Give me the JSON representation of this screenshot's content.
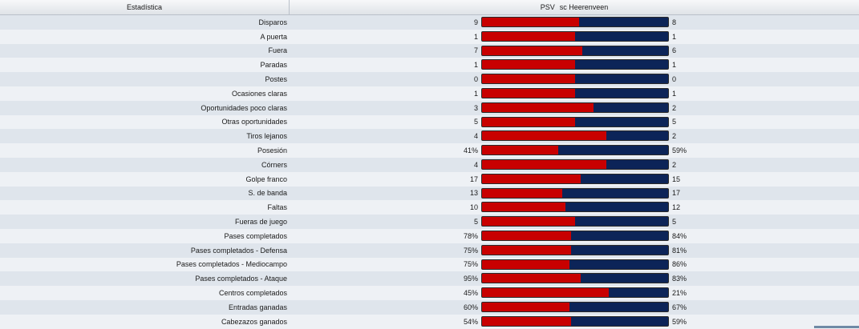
{
  "header": {
    "stat_col": "Estadística",
    "home_team": "PSV",
    "away_team": "sc Heerenveen"
  },
  "rows": [
    {
      "label": "Disparos",
      "home": "9",
      "away": "8",
      "home_share": 0.52
    },
    {
      "label": "A puerta",
      "home": "1",
      "away": "1",
      "home_share": 0.5
    },
    {
      "label": "Fuera",
      "home": "7",
      "away": "6",
      "home_share": 0.54
    },
    {
      "label": "Paradas",
      "home": "1",
      "away": "1",
      "home_share": 0.5
    },
    {
      "label": "Postes",
      "home": "0",
      "away": "0",
      "home_share": 0.5
    },
    {
      "label": "Ocasiones claras",
      "home": "1",
      "away": "1",
      "home_share": 0.5
    },
    {
      "label": "Oportunidades poco claras",
      "home": "3",
      "away": "2",
      "home_share": 0.6
    },
    {
      "label": "Otras oportunidades",
      "home": "5",
      "away": "5",
      "home_share": 0.5
    },
    {
      "label": "Tiros lejanos",
      "home": "4",
      "away": "2",
      "home_share": 0.67
    },
    {
      "label": "Posesión",
      "home": "41%",
      "away": "59%",
      "home_share": 0.41
    },
    {
      "label": "Córners",
      "home": "4",
      "away": "2",
      "home_share": 0.67
    },
    {
      "label": "Golpe franco",
      "home": "17",
      "away": "15",
      "home_share": 0.53
    },
    {
      "label": "S. de banda",
      "home": "13",
      "away": "17",
      "home_share": 0.43
    },
    {
      "label": "Faltas",
      "home": "10",
      "away": "12",
      "home_share": 0.45
    },
    {
      "label": "Fueras de juego",
      "home": "5",
      "away": "5",
      "home_share": 0.5
    },
    {
      "label": "Pases completados",
      "home": "78%",
      "away": "84%",
      "home_share": 0.48
    },
    {
      "label": "Pases completados - Defensa",
      "home": "75%",
      "away": "81%",
      "home_share": 0.48
    },
    {
      "label": "Pases completados - Mediocampo",
      "home": "75%",
      "away": "86%",
      "home_share": 0.47
    },
    {
      "label": "Pases completados - Ataque",
      "home": "95%",
      "away": "83%",
      "home_share": 0.53
    },
    {
      "label": "Centros completados",
      "home": "45%",
      "away": "21%",
      "home_share": 0.68
    },
    {
      "label": "Entradas ganadas",
      "home": "60%",
      "away": "67%",
      "home_share": 0.47
    },
    {
      "label": "Cabezazos ganados",
      "home": "54%",
      "away": "59%",
      "home_share": 0.48
    }
  ],
  "colors": {
    "home": "#c80000",
    "away": "#0c2458"
  }
}
